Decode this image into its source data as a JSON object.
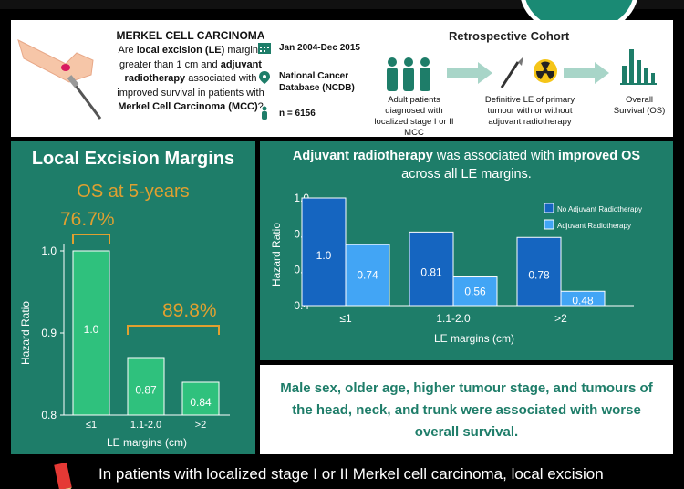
{
  "header": {
    "mcc_title": "MERKEL CELL CARCINOMA",
    "q1": "Are ",
    "q_le": "local excision (LE)",
    "q2": " margins greater than 1 cm and ",
    "q_adj": "adjuvant radiotherapy",
    "q3": " associated with improved survival in patients with ",
    "q_mcc": "Merkel Cell Carcinoma (MCC)",
    "q4": "?",
    "dates": "Jan 2004-Dec 2015",
    "database": "National Cancer Database (NCDB)",
    "n": "n = 6156",
    "cohort_title": "Retrospective Cohort",
    "flow_1": "Adult patients diagnosed with localized stage I or II MCC",
    "flow_2": "Definitive LE of primary tumour with or without adjuvant radiotherapy",
    "flow_3": "Overall Survival (OS)"
  },
  "left": {
    "title": "Local Excision Margins",
    "subtitle": "OS at 5-years",
    "pct1": "76.7%",
    "pct2": "89.8%"
  },
  "right": {
    "headline_a": "Adjuvant radiotherapy",
    "headline_b": " was associated with ",
    "headline_c": "improved OS",
    "headline_d": "across all LE margins."
  },
  "summary": "Male sex, older age, higher tumour stage, and tumours of the head, neck, and trunk were associated with worse overall survival.",
  "footer": "In patients with localized stage I or II Merkel cell carcinoma, local excision",
  "colors": {
    "teal": "#1e7d69",
    "bar_green": "#2fc17d",
    "dark_blue": "#1565c0",
    "light_blue": "#42a5f5",
    "orange": "#e0a030"
  },
  "chart_data": [
    {
      "type": "bar",
      "categories": [
        "≤1",
        "1.1-2.0",
        ">2"
      ],
      "values": [
        1.0,
        0.87,
        0.84
      ],
      "value_labels": [
        "1.0",
        "0.87",
        "0.84"
      ],
      "xlabel": "LE margins (cm)",
      "ylabel": "Hazard Ratio",
      "ylim": [
        0.8,
        1.0
      ],
      "yticks": [
        "0.8",
        "0.9",
        "1.0"
      ]
    },
    {
      "type": "bar",
      "categories": [
        "≤1",
        "1.1-2.0",
        ">2"
      ],
      "series": [
        {
          "name": "No Adjuvant Radiotherapy",
          "values": [
            1.0,
            0.81,
            0.78
          ],
          "labels": [
            "1.0",
            "0.81",
            "0.78"
          ]
        },
        {
          "name": "Adjuvant Radiotherapy",
          "values": [
            0.74,
            0.56,
            0.48
          ],
          "labels": [
            "0.74",
            "0.56",
            "0.48"
          ]
        }
      ],
      "xlabel": "LE margins (cm)",
      "ylabel": "Hazard Ratio",
      "ylim": [
        0.4,
        1.0
      ],
      "yticks": [
        "0.4",
        "0.6",
        "0.8",
        "1.0"
      ],
      "legend": "top-right"
    }
  ]
}
